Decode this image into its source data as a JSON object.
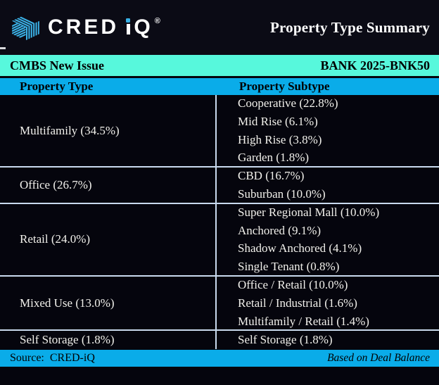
{
  "header": {
    "logo": {
      "cred": "CRED",
      "i": "i",
      "q": "Q",
      "registered": "®"
    },
    "title": "Property Type Summary"
  },
  "deal_bar": {
    "left": "CMBS New Issue",
    "right": "BANK 2025-BNK50"
  },
  "table": {
    "columns": [
      "Property Type",
      "Property Subtype"
    ],
    "groups": [
      {
        "type": "Multifamily (34.5%)",
        "subtypes": [
          "Cooperative (22.8%)",
          "Mid Rise (6.1%)",
          "High Rise (3.8%)",
          "Garden (1.8%)"
        ]
      },
      {
        "type": "Office (26.7%)",
        "subtypes": [
          "CBD (16.7%)",
          "Suburban (10.0%)"
        ]
      },
      {
        "type": "Retail (24.0%)",
        "subtypes": [
          "Super Regional Mall (10.0%)",
          "Anchored (9.1%)",
          "Shadow Anchored (4.1%)",
          "Single Tenant (0.8%)"
        ]
      },
      {
        "type": "Mixed Use (13.0%)",
        "subtypes": [
          "Office / Retail (10.0%)",
          "Retail / Industrial (1.6%)",
          "Multifamily / Retail (1.4%)"
        ]
      },
      {
        "type": "Self Storage (1.8%)",
        "subtypes": [
          "Self Storage (1.8%)"
        ]
      }
    ]
  },
  "footer": {
    "source": "Source:  CRED-iQ",
    "note": "Based on Deal Balance"
  },
  "colors": {
    "background": "#05050D",
    "header_background": "#0B0B15",
    "accent_aqua": "#57F8DC",
    "accent_blue": "#0AACE9",
    "divider": "#C9DAEE",
    "logo_blue": "#38B1E6",
    "body_text": "#F2F1EC"
  },
  "chart_data": {
    "type": "table",
    "title": "Property Type Summary",
    "deal_type": "CMBS New Issue",
    "deal": "BANK 2025-BNK50",
    "basis": "Based on Deal Balance",
    "source": "CRED-iQ",
    "columns": [
      "Property Type",
      "Property Subtype"
    ],
    "groups": [
      {
        "property_type": "Multifamily",
        "pct": 34.5,
        "subtypes": [
          {
            "name": "Cooperative",
            "pct": 22.8
          },
          {
            "name": "Mid Rise",
            "pct": 6.1
          },
          {
            "name": "High Rise",
            "pct": 3.8
          },
          {
            "name": "Garden",
            "pct": 1.8
          }
        ]
      },
      {
        "property_type": "Office",
        "pct": 26.7,
        "subtypes": [
          {
            "name": "CBD",
            "pct": 16.7
          },
          {
            "name": "Suburban",
            "pct": 10.0
          }
        ]
      },
      {
        "property_type": "Retail",
        "pct": 24.0,
        "subtypes": [
          {
            "name": "Super Regional Mall",
            "pct": 10.0
          },
          {
            "name": "Anchored",
            "pct": 9.1
          },
          {
            "name": "Shadow Anchored",
            "pct": 4.1
          },
          {
            "name": "Single Tenant",
            "pct": 0.8
          }
        ]
      },
      {
        "property_type": "Mixed Use",
        "pct": 13.0,
        "subtypes": [
          {
            "name": "Office / Retail",
            "pct": 10.0
          },
          {
            "name": "Retail / Industrial",
            "pct": 1.6
          },
          {
            "name": "Multifamily / Retail",
            "pct": 1.4
          }
        ]
      },
      {
        "property_type": "Self Storage",
        "pct": 1.8,
        "subtypes": [
          {
            "name": "Self Storage",
            "pct": 1.8
          }
        ]
      }
    ]
  }
}
